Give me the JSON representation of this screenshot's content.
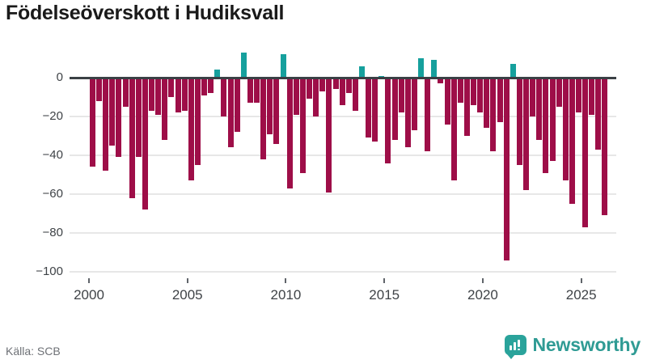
{
  "title": "Födelseöverskott i Hudiksvall",
  "source": "Källa: SCB",
  "brand": {
    "name": "Newsworthy"
  },
  "chart_data": {
    "type": "bar",
    "title": "Födelseöverskott i Hudiksvall",
    "frequency": "tertial (three 4-month periods per year)",
    "start_period": "2000-T1",
    "end_period": "2026-T1",
    "values": [
      -46,
      -12,
      -48,
      -35,
      -41,
      -15,
      -62,
      -41,
      -68,
      -17,
      -19,
      -32,
      -10,
      -18,
      -17,
      -53,
      -45,
      -9,
      -8,
      4,
      -20,
      -36,
      -28,
      13,
      -13,
      -13,
      -42,
      -29,
      -34,
      12,
      -57,
      -19,
      -49,
      -11,
      -20,
      -7,
      -59,
      -6,
      -14,
      -8,
      -17,
      6,
      -31,
      -33,
      1,
      -44,
      -32,
      -18,
      -36,
      -27,
      10,
      -38,
      9,
      -3,
      -24,
      -53,
      -13,
      -30,
      -14,
      -18,
      -26,
      -38,
      -23,
      -94,
      7,
      -45,
      -58,
      -20,
      -32,
      -49,
      -43,
      -15,
      -53,
      -65,
      -18,
      -77,
      -19,
      -37,
      -71
    ],
    "xtick_years": [
      2000,
      2005,
      2010,
      2015,
      2020,
      2025
    ],
    "xtick_labels": [
      "2000",
      "2005",
      "2010",
      "2015",
      "2020",
      "2025"
    ],
    "ytick_values": [
      0,
      -20,
      -40,
      -60,
      -80,
      -100
    ],
    "ytick_labels": [
      "0",
      "−20",
      "−40",
      "−60",
      "−80",
      "−100"
    ],
    "ylim": [
      -100,
      15
    ],
    "grid": "horizontal gridlines on",
    "zero_line": true,
    "legend": "none",
    "colors": {
      "negative": "#9e0e48",
      "positive": "#16a09d"
    }
  }
}
